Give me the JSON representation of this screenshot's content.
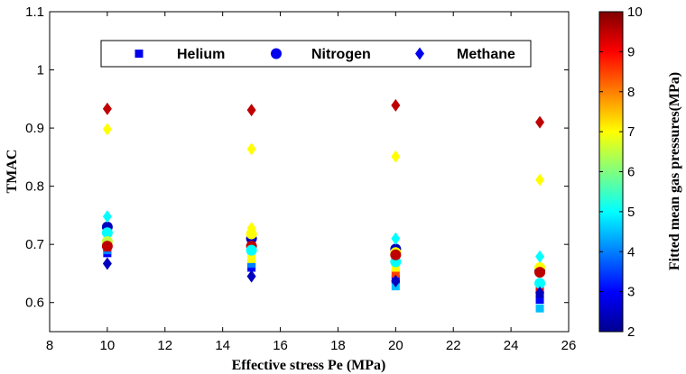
{
  "chart_data": {
    "type": "scatter",
    "xlabel": "Effective stress Pe (MPa)",
    "ylabel": "TMAC",
    "xlim": [
      8,
      26
    ],
    "ylim": [
      0.55,
      1.1
    ],
    "xticks": [
      "8",
      "10",
      "12",
      "14",
      "16",
      "18",
      "20",
      "22",
      "24",
      "26"
    ],
    "yticks": [
      "0.6",
      "0.7",
      "0.8",
      "0.9",
      "1",
      "1.1"
    ],
    "grid": false,
    "legend_placement": "top-center",
    "colorbar": {
      "label": "Fitted mean gas pressures(MPa)",
      "range": [
        2,
        10
      ],
      "ticks": [
        "2",
        "3",
        "4",
        "5",
        "6",
        "7",
        "8",
        "9",
        "10"
      ],
      "colormap": "jet"
    },
    "series": [
      {
        "name": "Helium",
        "marker": "square",
        "points": [
          {
            "x": 10,
            "y": 0.685,
            "p": 3.0
          },
          {
            "x": 10,
            "y": 0.69,
            "p": 4.0
          },
          {
            "x": 10,
            "y": 0.7,
            "p": 7.0
          },
          {
            "x": 10,
            "y": 0.695,
            "p": 9.0
          },
          {
            "x": 15,
            "y": 0.66,
            "p": 3.0
          },
          {
            "x": 15,
            "y": 0.667,
            "p": 4.0
          },
          {
            "x": 15,
            "y": 0.675,
            "p": 7.0
          },
          {
            "x": 15,
            "y": 0.69,
            "p": 9.5
          },
          {
            "x": 20,
            "y": 0.628,
            "p": 4.5
          },
          {
            "x": 20,
            "y": 0.64,
            "p": 3.0
          },
          {
            "x": 20,
            "y": 0.65,
            "p": 8.5
          },
          {
            "x": 20,
            "y": 0.66,
            "p": 7.0
          },
          {
            "x": 25,
            "y": 0.59,
            "p": 4.5
          },
          {
            "x": 25,
            "y": 0.605,
            "p": 3.0
          },
          {
            "x": 25,
            "y": 0.615,
            "p": 2.5
          },
          {
            "x": 25,
            "y": 0.625,
            "p": 9.0
          }
        ]
      },
      {
        "name": "Nitrogen",
        "marker": "circle",
        "points": [
          {
            "x": 10,
            "y": 0.73,
            "p": 2.5
          },
          {
            "x": 10,
            "y": 0.72,
            "p": 5.0
          },
          {
            "x": 10,
            "y": 0.705,
            "p": 6.5
          },
          {
            "x": 10,
            "y": 0.697,
            "p": 9.5
          },
          {
            "x": 15,
            "y": 0.71,
            "p": 2.5
          },
          {
            "x": 15,
            "y": 0.718,
            "p": 7.0
          },
          {
            "x": 15,
            "y": 0.697,
            "p": 9.5
          },
          {
            "x": 15,
            "y": 0.69,
            "p": 5.0
          },
          {
            "x": 20,
            "y": 0.692,
            "p": 2.5
          },
          {
            "x": 20,
            "y": 0.686,
            "p": 7.0
          },
          {
            "x": 20,
            "y": 0.67,
            "p": 5.0
          },
          {
            "x": 20,
            "y": 0.682,
            "p": 9.5
          },
          {
            "x": 25,
            "y": 0.655,
            "p": 2.5
          },
          {
            "x": 25,
            "y": 0.66,
            "p": 7.0
          },
          {
            "x": 25,
            "y": 0.652,
            "p": 9.5
          },
          {
            "x": 25,
            "y": 0.633,
            "p": 5.0
          }
        ]
      },
      {
        "name": "Methane",
        "marker": "diamond",
        "points": [
          {
            "x": 10,
            "y": 0.933,
            "p": 9.5
          },
          {
            "x": 10,
            "y": 0.898,
            "p": 7.0
          },
          {
            "x": 10,
            "y": 0.748,
            "p": 5.0
          },
          {
            "x": 10,
            "y": 0.667,
            "p": 2.5
          },
          {
            "x": 15,
            "y": 0.931,
            "p": 9.5
          },
          {
            "x": 15,
            "y": 0.864,
            "p": 7.0
          },
          {
            "x": 15,
            "y": 0.728,
            "p": 7.0
          },
          {
            "x": 15,
            "y": 0.645,
            "p": 2.5
          },
          {
            "x": 20,
            "y": 0.939,
            "p": 9.5
          },
          {
            "x": 20,
            "y": 0.851,
            "p": 7.0
          },
          {
            "x": 20,
            "y": 0.71,
            "p": 5.0
          },
          {
            "x": 20,
            "y": 0.637,
            "p": 2.5
          },
          {
            "x": 25,
            "y": 0.91,
            "p": 9.5
          },
          {
            "x": 25,
            "y": 0.811,
            "p": 7.0
          },
          {
            "x": 25,
            "y": 0.679,
            "p": 5.0
          },
          {
            "x": 25,
            "y": 0.617,
            "p": 2.5
          }
        ]
      }
    ]
  }
}
